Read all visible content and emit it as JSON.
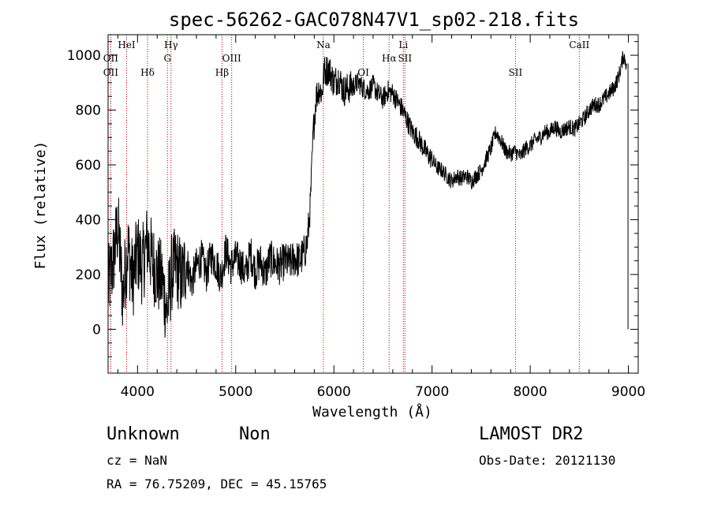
{
  "chart_data": {
    "type": "line",
    "title": "spec-56262-GAC078N47V1_sp02-218.fits",
    "xlabel": "Wavelength (Å)",
    "ylabel": "Flux (relative)",
    "xlim": [
      3700,
      9100
    ],
    "ylim": [
      -160,
      1075
    ],
    "x_ticks": [
      4000,
      5000,
      6000,
      7000,
      8000,
      9000
    ],
    "y_ticks": [
      0,
      200,
      400,
      600,
      800,
      1000
    ],
    "grid": false,
    "series": [
      {
        "x": [
          3700,
          3750,
          3800,
          3850,
          3900,
          3950,
          4000,
          4050,
          4100,
          4150,
          4200,
          4250,
          4300,
          4350,
          4400,
          4450,
          4500,
          4550,
          4600,
          4650,
          4700,
          4750,
          4800,
          4850,
          4900,
          4950,
          5000,
          5050,
          5100,
          5150,
          5200,
          5250,
          5300,
          5350,
          5400,
          5450,
          5500,
          5550,
          5600,
          5650,
          5700,
          5730,
          5760,
          5790,
          5820,
          5850,
          5880,
          5900,
          5950,
          6000,
          6050,
          6100,
          6150,
          6200,
          6250,
          6300,
          6350,
          6400,
          6450,
          6500,
          6550,
          6600,
          6650,
          6700,
          6750,
          6800,
          6850,
          6900,
          6950,
          7000,
          7050,
          7100,
          7150,
          7200,
          7250,
          7300,
          7350,
          7400,
          7450,
          7500,
          7550,
          7600,
          7650,
          7700,
          7750,
          7800,
          7850,
          7900,
          7950,
          8000,
          8050,
          8100,
          8150,
          8200,
          8250,
          8300,
          8350,
          8400,
          8450,
          8500,
          8550,
          8600,
          8650,
          8700,
          8750,
          8800,
          8850,
          8900,
          8950,
          8980
        ],
        "y": [
          150,
          240,
          380,
          120,
          300,
          180,
          280,
          230,
          320,
          250,
          200,
          180,
          60,
          210,
          230,
          180,
          250,
          170,
          230,
          260,
          200,
          270,
          240,
          190,
          290,
          230,
          260,
          240,
          200,
          280,
          210,
          250,
          200,
          260,
          240,
          230,
          250,
          240,
          260,
          250,
          280,
          320,
          450,
          720,
          850,
          880,
          860,
          940,
          950,
          900,
          920,
          870,
          880,
          890,
          900,
          880,
          870,
          890,
          860,
          840,
          870,
          860,
          830,
          800,
          760,
          720,
          700,
          670,
          640,
          620,
          590,
          580,
          560,
          540,
          560,
          550,
          560,
          540,
          560,
          580,
          620,
          660,
          720,
          690,
          650,
          640,
          650,
          630,
          660,
          670,
          690,
          700,
          720,
          720,
          740,
          720,
          730,
          740,
          730,
          750,
          770,
          800,
          820,
          820,
          840,
          860,
          880,
          920,
          1000,
          970
        ]
      }
    ],
    "spectral_lines": [
      {
        "name": "HeI",
        "x": 3889,
        "row": 1
      },
      {
        "name": "OII",
        "x": 3727,
        "row": 2
      },
      {
        "name": "OII",
        "x": 3727,
        "row": 3
      },
      {
        "name": "Hδ",
        "x": 4102,
        "row": 3
      },
      {
        "name": "Hγ",
        "x": 4341,
        "row": 1
      },
      {
        "name": "G",
        "x": 4305,
        "row": 2
      },
      {
        "name": "OIII",
        "x": 4959,
        "row": 2
      },
      {
        "name": "Hβ",
        "x": 4861,
        "row": 3
      },
      {
        "name": "Na",
        "x": 5893,
        "row": 1
      },
      {
        "name": "OI",
        "x": 6300,
        "row": 3
      },
      {
        "name": "Li",
        "x": 6708,
        "row": 1
      },
      {
        "name": "Hα",
        "x": 6563,
        "row": 2
      },
      {
        "name": "SII",
        "x": 6724,
        "row": 2
      },
      {
        "name": "SII",
        "x": 7850,
        "row": 3
      },
      {
        "name": "CaII",
        "x": 8500,
        "row": 1
      }
    ],
    "colors": {
      "spectrum": "#000000",
      "line_markers": "#b00000"
    }
  },
  "info": {
    "object_class": "Unknown",
    "subclass": "Non",
    "survey": "LAMOST DR2",
    "redshift": "cz = NaN",
    "obs_date": "Obs-Date: 20121130",
    "coords": "RA =  76.75209, DEC =  45.15765"
  }
}
